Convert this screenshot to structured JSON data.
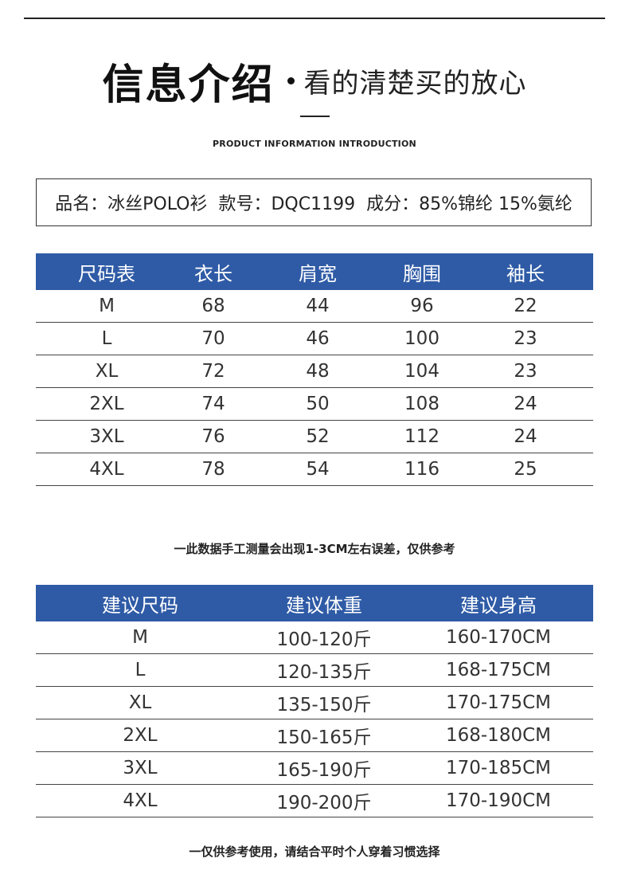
{
  "header": {
    "title_main": "信息介绍",
    "title_sub": "看的清楚买的放心",
    "caption_en": "PRODUCT INFORMATION INTRODUCTION"
  },
  "product_info": {
    "text": "品名：冰丝POLO衫  款号：DQC1199  成分：85%锦纶 15%氨纶"
  },
  "size_table": {
    "headers": [
      "尺码表",
      "衣长",
      "肩宽",
      "胸围",
      "袖长"
    ],
    "rows": [
      [
        "M",
        "68",
        "44",
        "96",
        "22"
      ],
      [
        "L",
        "70",
        "46",
        "100",
        "23"
      ],
      [
        "XL",
        "72",
        "48",
        "104",
        "23"
      ],
      [
        "2XL",
        "74",
        "50",
        "108",
        "24"
      ],
      [
        "3XL",
        "76",
        "52",
        "112",
        "24"
      ],
      [
        "4XL",
        "78",
        "54",
        "116",
        "25"
      ]
    ]
  },
  "note_measure": "一此数据手工测量会出现1-3CM左右误差，仅供参考",
  "recommend_table": {
    "headers": [
      "建议尺码",
      "建议体重",
      "建议身高"
    ],
    "rows": [
      [
        "M",
        "100-120斤",
        "160-170CM"
      ],
      [
        "L",
        "120-135斤",
        "168-175CM"
      ],
      [
        "XL",
        "135-150斤",
        "170-175CM"
      ],
      [
        "2XL",
        "150-165斤",
        "168-180CM"
      ],
      [
        "3XL",
        "165-190斤",
        "170-185CM"
      ],
      [
        "4XL",
        "190-200斤",
        "170-190CM"
      ]
    ]
  },
  "note_reference": "一仅供参考使用，请结合平时个人穿着习惯选择",
  "colors": {
    "header_blue": "#2f5ba6",
    "text_dark": "#222222"
  }
}
